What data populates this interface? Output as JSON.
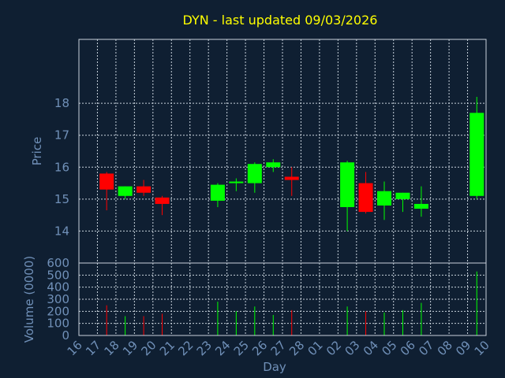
{
  "chart_data": {
    "type": "candlestick",
    "title": "DYN - last updated 09/03/2026",
    "xlabel": "Day",
    "price_panel": {
      "ylabel": "Price",
      "yticks": [
        14,
        15,
        16,
        17,
        18
      ],
      "ylim": [
        13,
        20
      ]
    },
    "volume_panel": {
      "ylabel": "Volume (0000)",
      "yticks": [
        0,
        100,
        200,
        300,
        400,
        500,
        600
      ],
      "ylim": [
        0,
        600
      ]
    },
    "x_tick_labels": [
      "16",
      "17",
      "18",
      "19",
      "20",
      "21",
      "22",
      "23",
      "24",
      "25",
      "26",
      "27",
      "28",
      "01",
      "02",
      "03",
      "04",
      "05",
      "06",
      "07",
      "08",
      "09",
      "10"
    ],
    "grid": true,
    "colors": {
      "up": "#00ff00",
      "down": "#ff0000",
      "background": "#0f1f32",
      "title": "#ffff00",
      "label": "#7090b8",
      "frame": "#c8d2dc"
    },
    "candles": [
      {
        "day": "17",
        "open": 15.8,
        "high": 15.85,
        "low": 14.65,
        "close": 15.3,
        "volume": 250
      },
      {
        "day": "18",
        "open": 15.1,
        "high": 15.4,
        "low": 15.0,
        "close": 15.4,
        "volume": 160
      },
      {
        "day": "19",
        "open": 15.4,
        "high": 15.6,
        "low": 15.1,
        "close": 15.2,
        "volume": 160
      },
      {
        "day": "20",
        "open": 15.05,
        "high": 15.1,
        "low": 14.5,
        "close": 14.85,
        "volume": 180
      },
      {
        "day": "23",
        "open": 14.95,
        "high": 15.5,
        "low": 14.75,
        "close": 15.45,
        "volume": 280
      },
      {
        "day": "24",
        "open": 15.5,
        "high": 15.65,
        "low": 15.25,
        "close": 15.55,
        "volume": 200
      },
      {
        "day": "25",
        "open": 15.5,
        "high": 16.15,
        "low": 15.2,
        "close": 16.1,
        "volume": 240
      },
      {
        "day": "26",
        "open": 16.0,
        "high": 16.25,
        "low": 15.85,
        "close": 16.15,
        "volume": 170
      },
      {
        "day": "27",
        "open": 15.7,
        "high": 16.0,
        "low": 15.1,
        "close": 15.6,
        "volume": 210
      },
      {
        "day": "02",
        "open": 14.75,
        "high": 16.2,
        "low": 14.0,
        "close": 16.15,
        "volume": 240
      },
      {
        "day": "03",
        "open": 15.5,
        "high": 15.85,
        "low": 14.55,
        "close": 14.6,
        "volume": 200
      },
      {
        "day": "04",
        "open": 14.8,
        "high": 15.55,
        "low": 14.35,
        "close": 15.25,
        "volume": 190
      },
      {
        "day": "05",
        "open": 15.0,
        "high": 15.2,
        "low": 14.6,
        "close": 15.2,
        "volume": 210
      },
      {
        "day": "06",
        "open": 14.7,
        "high": 15.4,
        "low": 14.45,
        "close": 14.85,
        "volume": 270
      },
      {
        "day": "09",
        "open": 15.1,
        "high": 18.2,
        "low": 15.0,
        "close": 17.7,
        "volume": 530
      }
    ]
  }
}
